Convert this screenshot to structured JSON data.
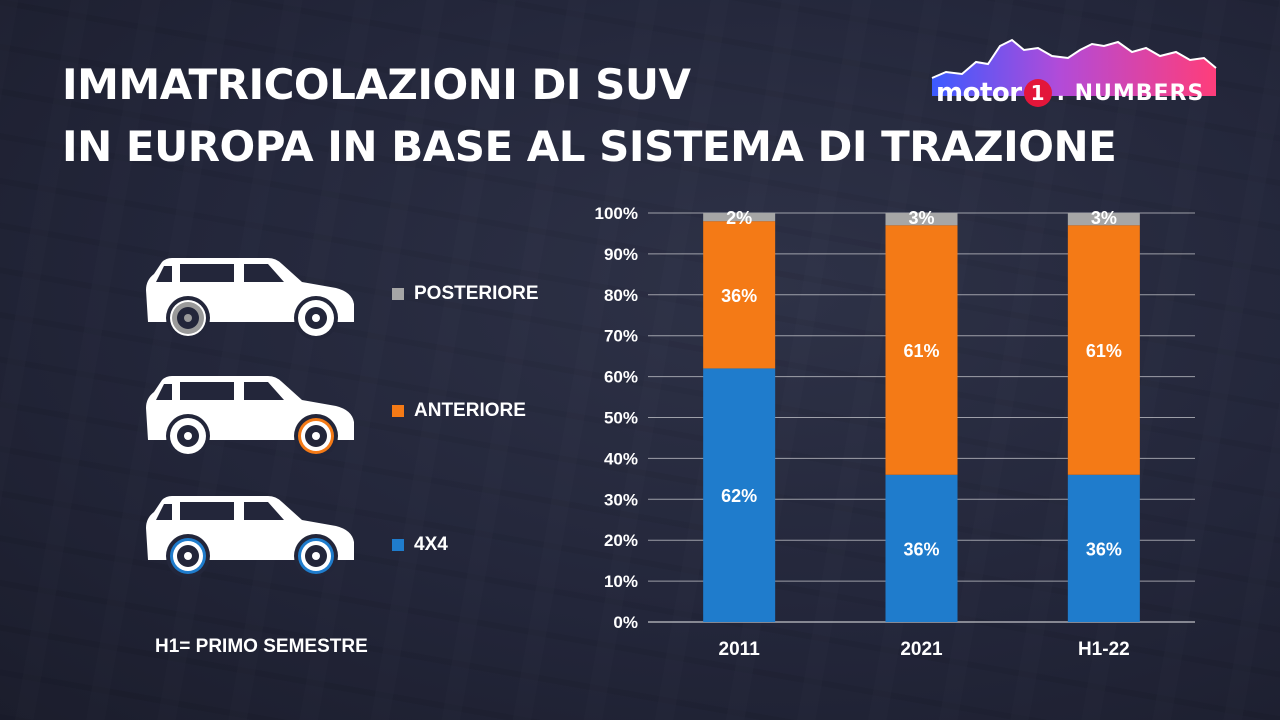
{
  "title": [
    "IMMATRICOLAZIONI DI SUV",
    "IN EUROPA IN BASE AL SISTEMA DI TRAZIONE"
  ],
  "logo": {
    "brand": "motor",
    "badge": "1",
    "suffix": ". NUMBERS"
  },
  "footnote": "H1= PRIMO SEMESTRE",
  "legend": [
    {
      "label": "POSTERIORE",
      "color": "#a6a6a6",
      "icon": "suv-rear-drive-icon"
    },
    {
      "label": "ANTERIORE",
      "color": "#f47a16",
      "icon": "suv-front-drive-icon"
    },
    {
      "label": "4X4",
      "color": "#1f7ccc",
      "icon": "suv-4x4-icon"
    }
  ],
  "chart_data": {
    "type": "bar",
    "stacked": true,
    "categories": [
      "2011",
      "2021",
      "H1-22"
    ],
    "series": [
      {
        "name": "4X4",
        "values": [
          62,
          36,
          36
        ],
        "labels": [
          "62%",
          "36%",
          "36%"
        ],
        "color": "#1f7ccc"
      },
      {
        "name": "ANTERIORE",
        "values": [
          36,
          61,
          61
        ],
        "labels": [
          "36%",
          "61%",
          "61%"
        ],
        "color": "#f47a16"
      },
      {
        "name": "POSTERIORE",
        "values": [
          2,
          3,
          3
        ],
        "labels": [
          "2%",
          "3%",
          "3%"
        ],
        "color": "#a6a6a6"
      }
    ],
    "yticks": [
      "0%",
      "10%",
      "20%",
      "30%",
      "40%",
      "50%",
      "60%",
      "70%",
      "80%",
      "90%",
      "100%"
    ],
    "ylim": [
      0,
      100
    ],
    "grid": true,
    "title": "",
    "xlabel": "",
    "ylabel": ""
  }
}
